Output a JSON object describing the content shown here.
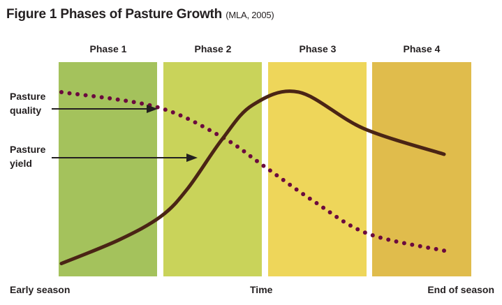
{
  "title": "Figure 1 Phases of Pasture Growth",
  "citation": "(MLA, 2005)",
  "phases": [
    {
      "label": "Phase 1",
      "color": "#a4c25c"
    },
    {
      "label": "Phase 2",
      "color": "#c9d35a"
    },
    {
      "label": "Phase 3",
      "color": "#eed65a"
    },
    {
      "label": "Phase 4",
      "color": "#e0bc4c"
    }
  ],
  "legend": {
    "quality": [
      "Pasture",
      "quality"
    ],
    "yield": [
      "Pasture",
      "yield"
    ]
  },
  "xaxis": {
    "start": "Early season",
    "middle": "Time",
    "end": "End of season"
  },
  "chart_data": {
    "type": "line",
    "title": "Figure 1 Phases of Pasture Growth (MLA, 2005)",
    "xlabel": "Time",
    "xlim": [
      0,
      100
    ],
    "ylim": [
      0,
      100
    ],
    "series": [
      {
        "name": "Pasture yield",
        "style": "solid",
        "color": "#4a2415",
        "x": [
          0,
          15,
          26,
          33,
          42,
          50,
          62,
          79,
          100
        ],
        "y": [
          6,
          17,
          28,
          41,
          64,
          80,
          86,
          69,
          57
        ]
      },
      {
        "name": "Pasture quality",
        "style": "dotted",
        "color": "#6b0a3e",
        "x": [
          0,
          25,
          42,
          52.5,
          66,
          80,
          100
        ],
        "y": [
          86,
          79,
          65,
          52,
          35,
          20,
          12
        ]
      }
    ]
  }
}
